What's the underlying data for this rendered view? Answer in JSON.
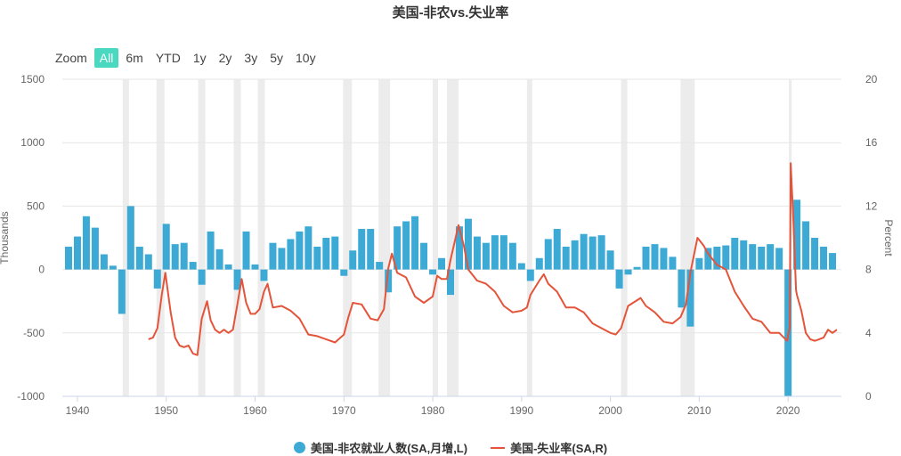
{
  "title": "美国-非农vs.失业率",
  "zoom": {
    "label": "Zoom",
    "buttons": [
      "All",
      "6m",
      "YTD",
      "1y",
      "2y",
      "3y",
      "5y",
      "10y"
    ],
    "active": "All"
  },
  "colors": {
    "bars": "#3daad6",
    "line": "#e4543a",
    "recession": "#ececec",
    "grid": "#e6e6e6"
  },
  "chart_data": {
    "type": "bar+line",
    "title": "美国-非农vs.失业率",
    "x_ticks": [
      "1940",
      "1950",
      "1960",
      "1970",
      "1980",
      "1990",
      "2000",
      "2010",
      "2020"
    ],
    "x_range": [
      1938.3,
      2026.0
    ],
    "y_left": {
      "label": "Thousands",
      "range": [
        -1000,
        1500
      ],
      "ticks": [
        "1500",
        "1000",
        "500",
        "0",
        "-500",
        "-1000"
      ]
    },
    "y_right": {
      "label": "Percent",
      "range": [
        0,
        20
      ],
      "ticks": [
        "20",
        "16",
        "12",
        "8",
        "4",
        "0"
      ]
    },
    "recessions": [
      [
        1945.1,
        1945.8
      ],
      [
        1948.9,
        1949.8
      ],
      [
        1953.6,
        1954.4
      ],
      [
        1957.6,
        1958.4
      ],
      [
        1960.3,
        1961.1
      ],
      [
        1969.9,
        1970.9
      ],
      [
        1973.9,
        1975.2
      ],
      [
        1980.0,
        1980.6
      ],
      [
        1981.6,
        1982.9
      ],
      [
        1990.6,
        1991.2
      ],
      [
        2001.2,
        2001.9
      ],
      [
        2007.9,
        2009.5
      ],
      [
        2020.1,
        2020.4
      ]
    ],
    "series": [
      {
        "name": "美国-非农就业人数(SA,月增,L)",
        "type": "bar",
        "axis": "left",
        "points": [
          [
            1939,
            180
          ],
          [
            1940,
            260
          ],
          [
            1941,
            420
          ],
          [
            1942,
            330
          ],
          [
            1943,
            120
          ],
          [
            1944,
            30
          ],
          [
            1945,
            -350
          ],
          [
            1946,
            500
          ],
          [
            1947,
            180
          ],
          [
            1948,
            120
          ],
          [
            1949,
            -150
          ],
          [
            1950,
            360
          ],
          [
            1951,
            200
          ],
          [
            1952,
            210
          ],
          [
            1953,
            60
          ],
          [
            1954,
            -120
          ],
          [
            1955,
            300
          ],
          [
            1956,
            160
          ],
          [
            1957,
            40
          ],
          [
            1958,
            -160
          ],
          [
            1959,
            300
          ],
          [
            1960,
            40
          ],
          [
            1961,
            -90
          ],
          [
            1962,
            210
          ],
          [
            1963,
            170
          ],
          [
            1964,
            240
          ],
          [
            1965,
            300
          ],
          [
            1966,
            340
          ],
          [
            1967,
            180
          ],
          [
            1968,
            250
          ],
          [
            1969,
            260
          ],
          [
            1970,
            -50
          ],
          [
            1971,
            150
          ],
          [
            1972,
            320
          ],
          [
            1973,
            320
          ],
          [
            1974,
            60
          ],
          [
            1975,
            -180
          ],
          [
            1976,
            340
          ],
          [
            1977,
            380
          ],
          [
            1978,
            420
          ],
          [
            1979,
            210
          ],
          [
            1980,
            -40
          ],
          [
            1981,
            90
          ],
          [
            1982,
            -200
          ],
          [
            1983,
            340
          ],
          [
            1984,
            400
          ],
          [
            1985,
            260
          ],
          [
            1986,
            210
          ],
          [
            1987,
            270
          ],
          [
            1988,
            270
          ],
          [
            1989,
            210
          ],
          [
            1990,
            50
          ],
          [
            1991,
            -90
          ],
          [
            1992,
            90
          ],
          [
            1993,
            240
          ],
          [
            1994,
            320
          ],
          [
            1995,
            180
          ],
          [
            1996,
            230
          ],
          [
            1997,
            280
          ],
          [
            1998,
            260
          ],
          [
            1999,
            270
          ],
          [
            2000,
            150
          ],
          [
            2001,
            -150
          ],
          [
            2002,
            -40
          ],
          [
            2003,
            20
          ],
          [
            2004,
            180
          ],
          [
            2005,
            200
          ],
          [
            2006,
            170
          ],
          [
            2007,
            100
          ],
          [
            2008,
            -300
          ],
          [
            2009,
            -450
          ],
          [
            2010,
            90
          ],
          [
            2011,
            170
          ],
          [
            2012,
            180
          ],
          [
            2013,
            190
          ],
          [
            2014,
            250
          ],
          [
            2015,
            230
          ],
          [
            2016,
            200
          ],
          [
            2017,
            180
          ],
          [
            2018,
            200
          ],
          [
            2019,
            170
          ],
          [
            2020,
            -1000
          ],
          [
            2021,
            550
          ],
          [
            2022,
            380
          ],
          [
            2023,
            250
          ],
          [
            2024,
            180
          ],
          [
            2025,
            130
          ]
        ]
      },
      {
        "name": "美国-失业率(SA,R)",
        "type": "line",
        "axis": "right",
        "points": [
          [
            1948.0,
            3.6
          ],
          [
            1948.5,
            3.7
          ],
          [
            1949.0,
            4.3
          ],
          [
            1949.5,
            6.4
          ],
          [
            1949.9,
            7.8
          ],
          [
            1950.5,
            5.3
          ],
          [
            1951.0,
            3.7
          ],
          [
            1951.5,
            3.2
          ],
          [
            1952.0,
            3.1
          ],
          [
            1952.5,
            3.2
          ],
          [
            1953.0,
            2.7
          ],
          [
            1953.5,
            2.6
          ],
          [
            1954.0,
            4.9
          ],
          [
            1954.6,
            6.0
          ],
          [
            1955.0,
            4.8
          ],
          [
            1955.5,
            4.2
          ],
          [
            1956.0,
            4.0
          ],
          [
            1956.5,
            4.2
          ],
          [
            1957.0,
            4.0
          ],
          [
            1957.5,
            4.2
          ],
          [
            1958.0,
            5.8
          ],
          [
            1958.5,
            7.4
          ],
          [
            1959.0,
            5.9
          ],
          [
            1959.5,
            5.2
          ],
          [
            1960.0,
            5.2
          ],
          [
            1960.5,
            5.5
          ],
          [
            1961.0,
            6.6
          ],
          [
            1961.4,
            7.1
          ],
          [
            1962.0,
            5.6
          ],
          [
            1963.0,
            5.7
          ],
          [
            1964.0,
            5.4
          ],
          [
            1965.0,
            4.9
          ],
          [
            1966.0,
            3.9
          ],
          [
            1967.0,
            3.8
          ],
          [
            1968.0,
            3.6
          ],
          [
            1969.0,
            3.4
          ],
          [
            1970.0,
            3.9
          ],
          [
            1970.5,
            5.0
          ],
          [
            1971.0,
            5.9
          ],
          [
            1972.0,
            5.8
          ],
          [
            1973.0,
            4.9
          ],
          [
            1973.8,
            4.8
          ],
          [
            1974.5,
            5.5
          ],
          [
            1975.0,
            8.1
          ],
          [
            1975.4,
            9.0
          ],
          [
            1976.0,
            7.8
          ],
          [
            1977.0,
            7.5
          ],
          [
            1978.0,
            6.3
          ],
          [
            1979.0,
            5.9
          ],
          [
            1980.0,
            6.3
          ],
          [
            1980.5,
            7.6
          ],
          [
            1981.0,
            7.4
          ],
          [
            1981.6,
            7.4
          ],
          [
            1982.0,
            8.6
          ],
          [
            1982.9,
            10.8
          ],
          [
            1983.5,
            9.5
          ],
          [
            1984.0,
            8.0
          ],
          [
            1985.0,
            7.3
          ],
          [
            1986.0,
            7.1
          ],
          [
            1987.0,
            6.6
          ],
          [
            1988.0,
            5.7
          ],
          [
            1989.0,
            5.3
          ],
          [
            1990.0,
            5.4
          ],
          [
            1990.6,
            5.6
          ],
          [
            1991.0,
            6.4
          ],
          [
            1992.0,
            7.3
          ],
          [
            1992.5,
            7.7
          ],
          [
            1993.0,
            7.1
          ],
          [
            1994.0,
            6.6
          ],
          [
            1995.0,
            5.6
          ],
          [
            1996.0,
            5.6
          ],
          [
            1997.0,
            5.3
          ],
          [
            1998.0,
            4.6
          ],
          [
            1999.0,
            4.3
          ],
          [
            2000.0,
            4.0
          ],
          [
            2000.6,
            3.9
          ],
          [
            2001.2,
            4.3
          ],
          [
            2002.0,
            5.7
          ],
          [
            2003.4,
            6.2
          ],
          [
            2004.0,
            5.7
          ],
          [
            2005.0,
            5.3
          ],
          [
            2006.0,
            4.7
          ],
          [
            2007.0,
            4.6
          ],
          [
            2007.9,
            5.0
          ],
          [
            2008.5,
            5.8
          ],
          [
            2009.0,
            7.8
          ],
          [
            2009.8,
            10.0
          ],
          [
            2010.5,
            9.5
          ],
          [
            2011.0,
            9.0
          ],
          [
            2012.0,
            8.3
          ],
          [
            2013.0,
            8.0
          ],
          [
            2014.0,
            6.6
          ],
          [
            2015.0,
            5.7
          ],
          [
            2016.0,
            4.9
          ],
          [
            2017.0,
            4.7
          ],
          [
            2018.0,
            4.0
          ],
          [
            2019.0,
            4.0
          ],
          [
            2019.9,
            3.5
          ],
          [
            2020.2,
            4.4
          ],
          [
            2020.3,
            14.7
          ],
          [
            2020.6,
            11.1
          ],
          [
            2020.9,
            6.7
          ],
          [
            2021.0,
            6.4
          ],
          [
            2021.5,
            5.4
          ],
          [
            2022.0,
            4.0
          ],
          [
            2022.5,
            3.6
          ],
          [
            2023.0,
            3.5
          ],
          [
            2023.5,
            3.6
          ],
          [
            2024.0,
            3.7
          ],
          [
            2024.5,
            4.2
          ],
          [
            2025.0,
            4.0
          ],
          [
            2025.5,
            4.2
          ]
        ]
      }
    ]
  }
}
